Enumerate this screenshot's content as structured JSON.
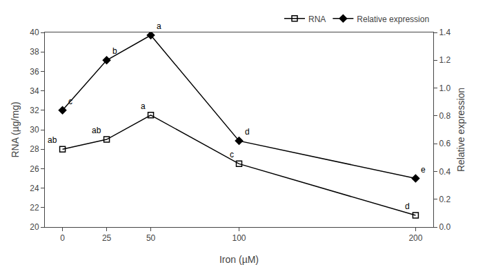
{
  "chart_data": {
    "type": "line",
    "xlabel": "Iron (µM)",
    "ylabel": "RNA (µg/mg)",
    "y2label": "Relative expression",
    "x": [
      0,
      25,
      50,
      100,
      200
    ],
    "series": [
      {
        "name": "RNA",
        "color": "#000000",
        "marker": "square-open",
        "axis": "y",
        "values": [
          28.0,
          29.0,
          31.5,
          26.5,
          21.2
        ]
      },
      {
        "name": "Relative expression",
        "color": "#000000",
        "marker": "diamond",
        "axis": "y2",
        "values": [
          0.84,
          1.2,
          1.38,
          0.62,
          0.35
        ]
      }
    ],
    "xlim": [
      -10,
      210
    ],
    "xticks": [
      0,
      25,
      50,
      100,
      200
    ],
    "ylim": [
      20,
      40
    ],
    "yticks": [
      20,
      22,
      24,
      26,
      28,
      30,
      32,
      34,
      36,
      38,
      40
    ],
    "y2lim": [
      0,
      1.4
    ],
    "y2ticks": [
      {
        "value": 0,
        "label": "0.0"
      },
      0.2,
      0.4,
      0.6,
      0.8,
      {
        "value": 1.0,
        "label": "1.0"
      },
      1.2,
      1.4
    ],
    "annotations": [
      {
        "text": "ab",
        "x": 0,
        "y": 28.0,
        "axis": "y"
      },
      {
        "text": "ab",
        "x": 25,
        "y": 29.0,
        "axis": "y"
      },
      {
        "text": "a",
        "x": 50,
        "y": 31.5,
        "axis": "y"
      },
      {
        "text": "c",
        "x": 100,
        "y": 26.5,
        "axis": "y"
      },
      {
        "text": "d",
        "x": 200,
        "y": 21.2,
        "axis": "y"
      },
      {
        "text": "c",
        "x": 0,
        "y": 0.84,
        "axis": "y2"
      },
      {
        "text": "b",
        "x": 25,
        "y": 1.2,
        "axis": "y2"
      },
      {
        "text": "a",
        "x": 50,
        "y": 1.38,
        "axis": "y2"
      },
      {
        "text": "d",
        "x": 100,
        "y": 0.62,
        "axis": "y2"
      },
      {
        "text": "e",
        "x": 200,
        "y": 0.35,
        "axis": "y2"
      }
    ],
    "grid": false,
    "legend": "upper right"
  }
}
